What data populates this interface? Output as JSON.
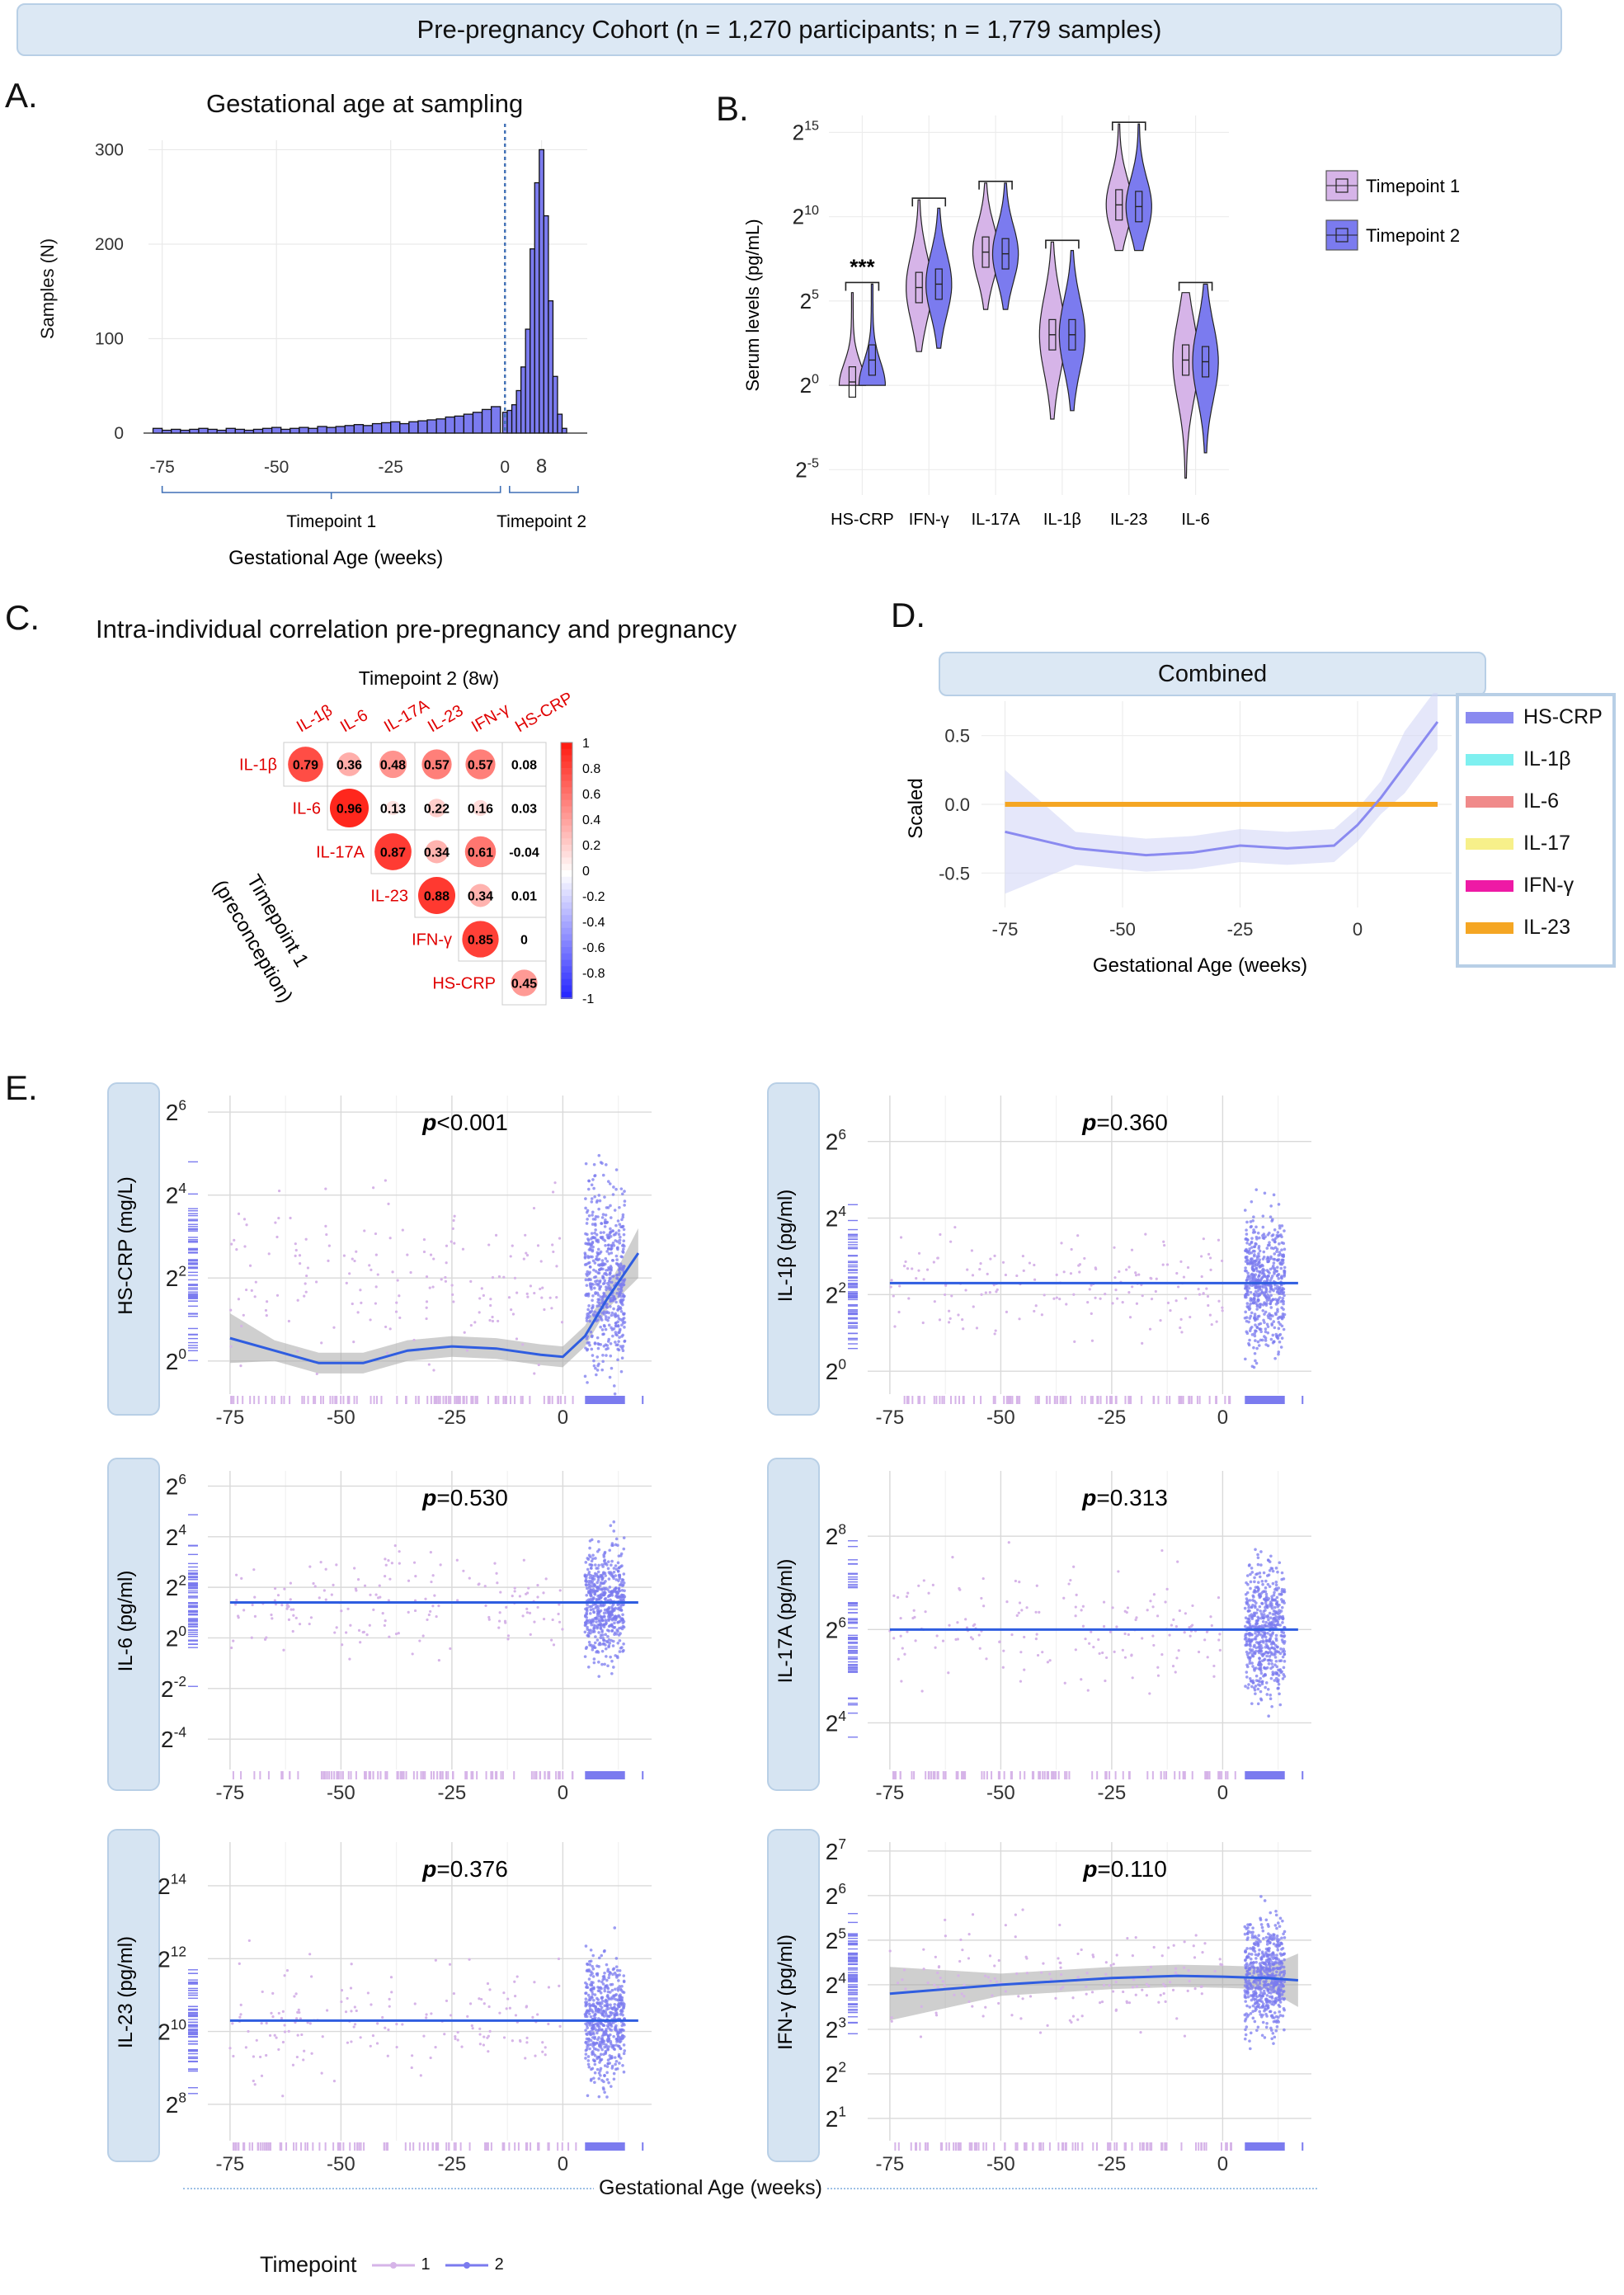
{
  "banner": "Pre-pregnancy Cohort (n = 1,270 participants; n = 1,779 samples)",
  "panels": {
    "A": "A.",
    "B": "B.",
    "C": "C.",
    "D": "D.",
    "E": "E."
  },
  "colors": {
    "tp1": "#d6b4e8",
    "tp2": "#7b7bef",
    "line": "#2f5de0",
    "ribbon": "#b0b0b0",
    "neg": "#1a1aff",
    "pos": "#e00000"
  },
  "chart_data": [
    {
      "id": "A",
      "type": "bar",
      "title": "Gestational age at sampling",
      "xlabel": "Gestational Age (weeks)",
      "ylabel": "Samples (N)",
      "xlim": [
        -78,
        18
      ],
      "ylim": [
        0,
        310
      ],
      "xticks": [
        "-75",
        "-50",
        "-25",
        "0",
        "8"
      ],
      "xtick_values": [
        -75,
        -50,
        -25,
        0,
        8
      ],
      "yticks": [
        "0",
        "100",
        "200",
        "300"
      ],
      "ytick_values": [
        0,
        100,
        200,
        300
      ],
      "vline_x": 0,
      "bracket_labels": [
        "Timepoint 1",
        "Timepoint 2"
      ],
      "bins": [
        {
          "x": -76,
          "n": 5
        },
        {
          "x": -74,
          "n": 3
        },
        {
          "x": -72,
          "n": 4
        },
        {
          "x": -70,
          "n": 3
        },
        {
          "x": -68,
          "n": 4
        },
        {
          "x": -66,
          "n": 5
        },
        {
          "x": -64,
          "n": 4
        },
        {
          "x": -62,
          "n": 3
        },
        {
          "x": -60,
          "n": 5
        },
        {
          "x": -58,
          "n": 4
        },
        {
          "x": -56,
          "n": 3
        },
        {
          "x": -54,
          "n": 4
        },
        {
          "x": -52,
          "n": 5
        },
        {
          "x": -50,
          "n": 6
        },
        {
          "x": -48,
          "n": 4
        },
        {
          "x": -46,
          "n": 5
        },
        {
          "x": -44,
          "n": 6
        },
        {
          "x": -42,
          "n": 5
        },
        {
          "x": -40,
          "n": 7
        },
        {
          "x": -38,
          "n": 6
        },
        {
          "x": -36,
          "n": 7
        },
        {
          "x": -34,
          "n": 8
        },
        {
          "x": -32,
          "n": 9
        },
        {
          "x": -30,
          "n": 8
        },
        {
          "x": -28,
          "n": 10
        },
        {
          "x": -26,
          "n": 11
        },
        {
          "x": -24,
          "n": 12
        },
        {
          "x": -22,
          "n": 10
        },
        {
          "x": -20,
          "n": 12
        },
        {
          "x": -18,
          "n": 13
        },
        {
          "x": -16,
          "n": 14
        },
        {
          "x": -14,
          "n": 15
        },
        {
          "x": -12,
          "n": 17
        },
        {
          "x": -10,
          "n": 18
        },
        {
          "x": -8,
          "n": 20
        },
        {
          "x": -6,
          "n": 22
        },
        {
          "x": -4,
          "n": 25
        },
        {
          "x": -2,
          "n": 28
        },
        {
          "x": 0,
          "n": 22
        },
        {
          "x": 1,
          "n": 24
        },
        {
          "x": 2,
          "n": 30
        },
        {
          "x": 3,
          "n": 45
        },
        {
          "x": 4,
          "n": 70
        },
        {
          "x": 5,
          "n": 110
        },
        {
          "x": 6,
          "n": 195
        },
        {
          "x": 7,
          "n": 265
        },
        {
          "x": 8,
          "n": 300
        },
        {
          "x": 9,
          "n": 230
        },
        {
          "x": 10,
          "n": 140
        },
        {
          "x": 11,
          "n": 60
        },
        {
          "x": 12,
          "n": 20
        },
        {
          "x": 13,
          "n": 5
        }
      ]
    },
    {
      "id": "B",
      "type": "violin",
      "ylabel": "Serum levels (pg/mL)",
      "categories": [
        "HS-CRP",
        "IFN-γ",
        "IL-17A",
        "IL-1β",
        "IL-23",
        "IL-6"
      ],
      "yticks": [
        {
          "base": "2",
          "exp": "15",
          "v": 15
        },
        {
          "base": "2",
          "exp": "10",
          "v": 10
        },
        {
          "base": "2",
          "exp": "5",
          "v": 5
        },
        {
          "base": "2",
          "exp": "0",
          "v": 0
        },
        {
          "base": "2",
          "exp": "-5",
          "v": -5
        }
      ],
      "ylim_log2": [
        -6.5,
        16
      ],
      "legend": [
        "Timepoint 1",
        "Timepoint 2"
      ],
      "significance": [
        {
          "category": "HS-CRP",
          "label": "***"
        }
      ],
      "medians_log2": {
        "tp1": [
          0.2,
          5.8,
          7.9,
          3.0,
          10.7,
          1.5
        ],
        "tp2": [
          1.5,
          6.0,
          7.8,
          3.0,
          10.6,
          1.4
        ]
      },
      "ranges_log2": {
        "tp1": [
          [
            0,
            5.5
          ],
          [
            2,
            11
          ],
          [
            4.5,
            12
          ],
          [
            -2,
            8.5
          ],
          [
            8,
            15.5
          ],
          [
            -5.5,
            5.5
          ]
        ],
        "tp2": [
          [
            0,
            6
          ],
          [
            2.2,
            10.5
          ],
          [
            4.5,
            12
          ],
          [
            -1.5,
            8
          ],
          [
            8,
            15.5
          ],
          [
            -4,
            6
          ]
        ]
      }
    },
    {
      "id": "C",
      "type": "heatmap",
      "title": "Intra-individual correlation pre-pregnancy and pregnancy",
      "xlabel": "Timepoint 2 (8w)",
      "ylabel": "Timepoint 1\n(preconception)",
      "col_labels": [
        "IL-1β",
        "IL-6",
        "IL-17A",
        "IL-23",
        "IFN-γ",
        "HS-CRP"
      ],
      "row_labels": [
        "IL-1β",
        "IL-6",
        "IL-17A",
        "IL-23",
        "IFN-γ",
        "HS-CRP"
      ],
      "values": [
        [
          "0.79",
          "0.36",
          "0.48",
          "0.57",
          "0.57",
          "0.08"
        ],
        [
          "0.96",
          "0.13",
          "0.22",
          "0.16",
          "0.03"
        ],
        [
          "0.87",
          "0.34",
          "0.61",
          "-0.04"
        ],
        [
          "0.88",
          "0.34",
          "0.01"
        ],
        [
          "0.85",
          "0"
        ],
        [
          "0.45"
        ]
      ],
      "colorbar_ticks": [
        "1",
        "0.8",
        "0.6",
        "0.4",
        "0.2",
        "0",
        "-0.2",
        "-0.4",
        "-0.6",
        "-0.8",
        "-1"
      ]
    },
    {
      "id": "D",
      "type": "line",
      "title": "Combined",
      "xlabel": "Gestational Age (weeks)",
      "ylabel": "Scaled",
      "xlim": [
        -80,
        20
      ],
      "ylim": [
        -0.75,
        0.75
      ],
      "xticks": [
        "-75",
        "-50",
        "-25",
        "0"
      ],
      "xtick_values": [
        -75,
        -50,
        -25,
        0
      ],
      "yticks": [
        "0.5",
        "0.0",
        "-0.5"
      ],
      "ytick_values": [
        0.5,
        0.0,
        -0.5
      ],
      "series": [
        {
          "name": "HS-CRP",
          "color": "#8a8af0",
          "x": [
            -75,
            -60,
            -45,
            -35,
            -25,
            -15,
            -5,
            0,
            5,
            10,
            17
          ],
          "y": [
            -0.2,
            -0.32,
            -0.37,
            -0.35,
            -0.3,
            -0.32,
            -0.3,
            -0.15,
            0.05,
            0.28,
            0.6
          ]
        },
        {
          "name": "IL-1β",
          "color": "#7ef0f0",
          "x": [
            -75,
            17
          ],
          "y": [
            0.0,
            0.0
          ]
        },
        {
          "name": "IL-6",
          "color": "#f08a8a",
          "x": [
            -75,
            17
          ],
          "y": [
            0.0,
            0.0
          ]
        },
        {
          "name": "IL-17",
          "color": "#f7f08a",
          "x": [
            -75,
            17
          ],
          "y": [
            0.0,
            0.0
          ]
        },
        {
          "name": "IFN-γ",
          "color": "#ee1aa5",
          "x": [
            -75,
            17
          ],
          "y": [
            0.0,
            0.0
          ]
        },
        {
          "name": "IL-23",
          "color": "#f5a623",
          "x": [
            -75,
            17
          ],
          "y": [
            0.0,
            0.0
          ]
        }
      ]
    },
    {
      "id": "E",
      "type": "scatter",
      "xlabel": "Gestational Age (weeks)",
      "legend_title": "Timepoint",
      "legend": [
        "1",
        "2"
      ],
      "xticks": [
        "-75",
        "-50",
        "-25",
        "0"
      ],
      "xtick_values": [
        -75,
        -50,
        -25,
        0
      ],
      "subplots": [
        {
          "name": "hscrp",
          "ylabel": "HS-CRP (mg/L)",
          "p_prefix": "p",
          "p_rest": "<0.001",
          "ylim": [
            -0.8,
            6.4
          ],
          "yticks": [
            {
              "e": "0",
              "v": 0
            },
            {
              "e": "2",
              "v": 2
            },
            {
              "e": "4",
              "v": 4
            },
            {
              "e": "6",
              "v": 6
            }
          ],
          "fit": {
            "x": [
              -75,
              -65,
              -55,
              -45,
              -35,
              -25,
              -15,
              -5,
              0,
              5,
              10,
              17
            ],
            "y": [
              0.55,
              0.25,
              -0.05,
              -0.05,
              0.25,
              0.35,
              0.3,
              0.15,
              0.1,
              0.6,
              1.5,
              2.6
            ]
          },
          "center": 2.0,
          "spread": 1.6
        },
        {
          "name": "il1b",
          "ylabel": "IL-1β (pg/ml)",
          "p_prefix": "p",
          "p_rest": "=0.360",
          "ylim": [
            -0.6,
            7.2
          ],
          "yticks": [
            {
              "e": "0",
              "v": 0
            },
            {
              "e": "2",
              "v": 2
            },
            {
              "e": "4",
              "v": 4
            },
            {
              "e": "6",
              "v": 6
            }
          ],
          "fit": {
            "x": [
              -75,
              17
            ],
            "y": [
              2.3,
              2.3
            ]
          },
          "center": 2.3,
          "spread": 1.2
        },
        {
          "name": "il6",
          "ylabel": "IL-6 (pg/ml)",
          "p_prefix": "p",
          "p_rest": "=0.530",
          "ylim": [
            -5.2,
            6.6
          ],
          "yticks": [
            {
              "e": "-4",
              "v": -4
            },
            {
              "e": "-2",
              "v": -2
            },
            {
              "e": "0",
              "v": 0
            },
            {
              "e": "2",
              "v": 2
            },
            {
              "e": "4",
              "v": 4
            },
            {
              "e": "6",
              "v": 6
            }
          ],
          "fit": {
            "x": [
              -75,
              17
            ],
            "y": [
              1.4,
              1.4
            ]
          },
          "center": 1.4,
          "spread": 1.6
        },
        {
          "name": "il17a",
          "ylabel": "IL-17A (pg/ml)",
          "p_prefix": "p",
          "p_rest": "=0.313",
          "ylim": [
            3.0,
            9.4
          ],
          "yticks": [
            {
              "e": "4",
              "v": 4
            },
            {
              "e": "6",
              "v": 6
            },
            {
              "e": "8",
              "v": 8
            }
          ],
          "fit": {
            "x": [
              -75,
              17
            ],
            "y": [
              6.0,
              6.0
            ]
          },
          "center": 6.0,
          "spread": 1.0
        },
        {
          "name": "il23",
          "ylabel": "IL-23 (pg/ml)",
          "p_prefix": "p",
          "p_rest": "=0.376",
          "ylim": [
            7.0,
            15.2
          ],
          "yticks": [
            {
              "e": "8",
              "v": 8
            },
            {
              "e": "10",
              "v": 10
            },
            {
              "e": "12",
              "v": 12
            },
            {
              "e": "14",
              "v": 14
            }
          ],
          "fit": {
            "x": [
              -75,
              17
            ],
            "y": [
              10.3,
              10.3
            ]
          },
          "center": 10.3,
          "spread": 1.2
        },
        {
          "name": "ifng",
          "ylabel": "IFN-γ (pg/ml)",
          "p_prefix": "p",
          "p_rest": "=0.110",
          "ylim": [
            0.5,
            7.2
          ],
          "yticks": [
            {
              "e": "1",
              "v": 1
            },
            {
              "e": "2",
              "v": 2
            },
            {
              "e": "3",
              "v": 3
            },
            {
              "e": "4",
              "v": 4
            },
            {
              "e": "5",
              "v": 5
            },
            {
              "e": "6",
              "v": 6
            },
            {
              "e": "7",
              "v": 7
            }
          ],
          "fit": {
            "x": [
              -75,
              -50,
              -25,
              -10,
              0,
              10,
              17
            ],
            "y": [
              3.8,
              4.0,
              4.15,
              4.2,
              4.18,
              4.15,
              4.1
            ]
          },
          "center": 4.2,
          "spread": 0.9
        }
      ]
    }
  ]
}
